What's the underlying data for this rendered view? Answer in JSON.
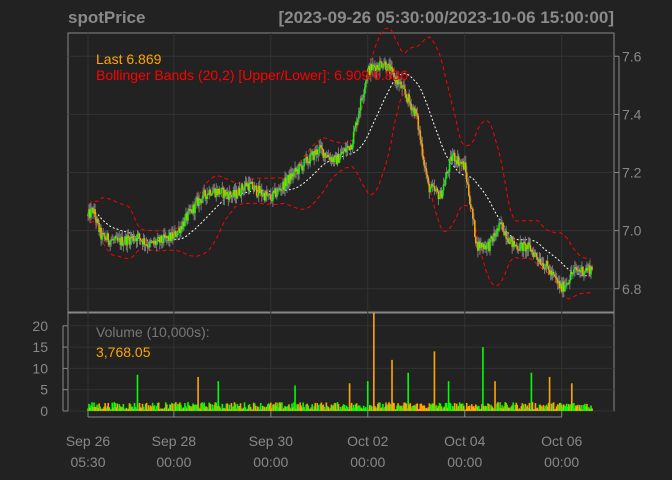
{
  "header": {
    "symbol": "spotPrice",
    "range": "[2023-09-26 05:30:00/2023-10-06 15:00:00]"
  },
  "colors": {
    "background": "#222222",
    "frame": "#888888",
    "grid": "#333333",
    "up": "#00ff00",
    "down": "#ffa500",
    "bands": "#ff0000",
    "ma": "#ffffff",
    "last_label": "#ffa500",
    "bands_label": "#ff0000",
    "volume_label": "#777777"
  },
  "chart_data": {
    "type": "candlestick",
    "price_panel": {
      "last_label": "Last 6.869",
      "bands_label": "Bollinger Bands (20,2) [Upper/Lower]: 6.909/6.836",
      "y_ticks": [
        "6.8",
        "7.0",
        "7.2",
        "7.4",
        "7.6"
      ],
      "y_range": [
        6.72,
        7.68
      ],
      "anchors": [
        [
          "2023-09-26 05:30",
          7.05
        ],
        [
          "2023-09-26 08:00",
          7.07
        ],
        [
          "2023-09-26 12:00",
          6.98
        ],
        [
          "2023-09-26 20:00",
          6.96
        ],
        [
          "2023-09-27 06:00",
          6.98
        ],
        [
          "2023-09-27 12:00",
          6.95
        ],
        [
          "2023-09-28 00:00",
          6.98
        ],
        [
          "2023-09-28 12:00",
          7.1
        ],
        [
          "2023-09-28 18:00",
          7.14
        ],
        [
          "2023-09-29 06:00",
          7.12
        ],
        [
          "2023-09-29 12:00",
          7.16
        ],
        [
          "2023-09-30 00:00",
          7.11
        ],
        [
          "2023-09-30 12:00",
          7.2
        ],
        [
          "2023-10-01 00:00",
          7.28
        ],
        [
          "2023-10-01 08:00",
          7.24
        ],
        [
          "2023-10-01 16:00",
          7.3
        ],
        [
          "2023-10-02 00:00",
          7.55
        ],
        [
          "2023-10-02 08:00",
          7.58
        ],
        [
          "2023-10-02 16:00",
          7.5
        ],
        [
          "2023-10-03 00:00",
          7.4
        ],
        [
          "2023-10-03 06:00",
          7.15
        ],
        [
          "2023-10-03 12:00",
          7.12
        ],
        [
          "2023-10-03 18:00",
          7.26
        ],
        [
          "2023-10-04 00:00",
          7.22
        ],
        [
          "2023-10-04 06:00",
          6.95
        ],
        [
          "2023-10-04 12:00",
          6.95
        ],
        [
          "2023-10-04 18:00",
          7.02
        ],
        [
          "2023-10-05 00:00",
          6.95
        ],
        [
          "2023-10-05 08:00",
          6.94
        ],
        [
          "2023-10-05 16:00",
          6.88
        ],
        [
          "2023-10-06 00:00",
          6.8
        ],
        [
          "2023-10-06 06:00",
          6.86
        ],
        [
          "2023-10-06 15:00",
          6.87
        ]
      ]
    },
    "volume_panel": {
      "title": "Volume (10,000s):",
      "last_value": "3,768.05",
      "y_ticks": [
        "0",
        "5",
        "10",
        "15",
        "20"
      ],
      "y_range": [
        0,
        23
      ],
      "spikes": [
        [
          "2023-09-27 06:00",
          8.5
        ],
        [
          "2023-09-28 12:00",
          8.0
        ],
        [
          "2023-09-28 22:00",
          7.0
        ],
        [
          "2023-09-30 12:00",
          6.0
        ],
        [
          "2023-10-01 15:00",
          6.5
        ],
        [
          "2023-10-02 00:00",
          7.0
        ],
        [
          "2023-10-02 03:00",
          23.0
        ],
        [
          "2023-10-02 12:00",
          12.0
        ],
        [
          "2023-10-02 20:00",
          9.0
        ],
        [
          "2023-10-03 09:00",
          14.0
        ],
        [
          "2023-10-03 16:00",
          7.0
        ],
        [
          "2023-10-04 09:00",
          15.0
        ],
        [
          "2023-10-04 15:00",
          7.0
        ],
        [
          "2023-10-05 09:00",
          9.0
        ],
        [
          "2023-10-05 18:00",
          8.0
        ],
        [
          "2023-10-06 05:00",
          6.5
        ]
      ]
    },
    "x_ticks": [
      {
        "t": "2023-09-26 05:30",
        "line1": "Sep 26",
        "line2": "05:30"
      },
      {
        "t": "2023-09-28 00:00",
        "line1": "Sep 28",
        "line2": "00:00"
      },
      {
        "t": "2023-09-30 00:00",
        "line1": "Sep 30",
        "line2": "00:00"
      },
      {
        "t": "2023-10-02 00:00",
        "line1": "Oct 02",
        "line2": "00:00"
      },
      {
        "t": "2023-10-04 00:00",
        "line1": "Oct 04",
        "line2": "00:00"
      },
      {
        "t": "2023-10-06 00:00",
        "line1": "Oct 06",
        "line2": "00:00"
      }
    ],
    "x_range": [
      "2023-09-26 05:30",
      "2023-10-06 15:00"
    ],
    "bollinger": {
      "period": 20,
      "sd": 2
    },
    "grid": true
  }
}
